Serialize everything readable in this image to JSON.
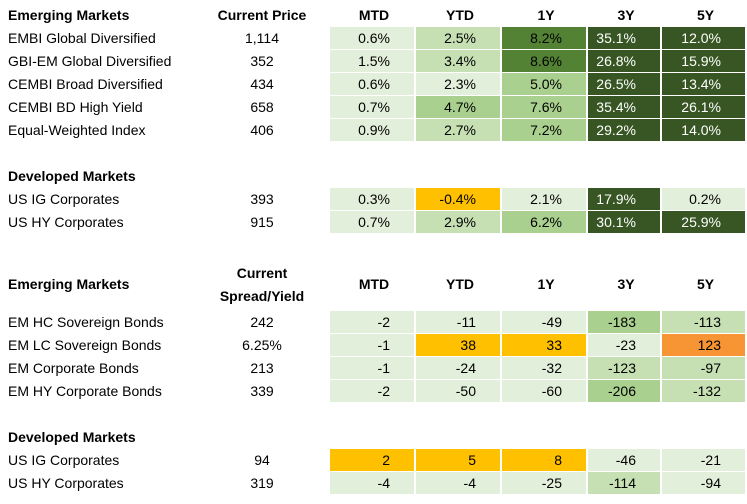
{
  "tables": [
    {
      "header": {
        "section": "Emerging Markets",
        "current": [
          "Current Price"
        ],
        "periods": [
          "MTD",
          "YTD",
          "1Y",
          "3Y",
          "5Y"
        ]
      },
      "groups": [
        {
          "rows": [
            {
              "name": "EMBI Global Diversified",
              "current": "1,114",
              "cells": [
                "0.6%",
                "2.5%",
                "8.2%",
                "35.1%",
                "12.0%"
              ],
              "fills": [
                "#e2efda",
                "#c6e0b4",
                "#548235",
                "#375623",
                "#375623"
              ]
            },
            {
              "name": "GBI-EM Global Diversified",
              "current": "352",
              "cells": [
                "1.5%",
                "3.4%",
                "8.6%",
                "26.8%",
                "15.9%"
              ],
              "fills": [
                "#e2efda",
                "#c6e0b4",
                "#548235",
                "#375623",
                "#375623"
              ]
            },
            {
              "name": "CEMBI Broad Diversified",
              "current": "434",
              "cells": [
                "0.6%",
                "2.3%",
                "5.0%",
                "26.5%",
                "13.4%"
              ],
              "fills": [
                "#e2efda",
                "#e2efda",
                "#a9d08e",
                "#375623",
                "#375623"
              ]
            },
            {
              "name": "CEMBI BD High Yield",
              "current": "658",
              "cells": [
                "0.7%",
                "4.7%",
                "7.6%",
                "35.4%",
                "26.1%"
              ],
              "fills": [
                "#e2efda",
                "#a9d08e",
                "#a9d08e",
                "#375623",
                "#375623"
              ]
            },
            {
              "name": "Equal-Weighted Index",
              "current": "406",
              "cells": [
                "0.9%",
                "2.7%",
                "7.2%",
                "29.2%",
                "14.0%"
              ],
              "fills": [
                "#e2efda",
                "#c6e0b4",
                "#a9d08e",
                "#375623",
                "#375623"
              ]
            }
          ]
        },
        {
          "title": "Developed Markets",
          "rows": [
            {
              "name": "US IG Corporates",
              "current": "393",
              "cells": [
                "0.3%",
                "-0.4%",
                "2.1%",
                "17.9%",
                "0.2%"
              ],
              "fills": [
                "#e2efda",
                "#ffc000",
                "#e2efda",
                "#375623",
                "#e2efda"
              ]
            },
            {
              "name": "US HY Corporates",
              "current": "915",
              "cells": [
                "0.7%",
                "2.9%",
                "6.2%",
                "30.1%",
                "25.9%"
              ],
              "fills": [
                "#e2efda",
                "#c6e0b4",
                "#a9d08e",
                "#375623",
                "#375623"
              ]
            }
          ]
        }
      ]
    },
    {
      "header": {
        "section": "Emerging Markets",
        "current": [
          "Current",
          "Spread/Yield"
        ],
        "periods": [
          "MTD",
          "YTD",
          "1Y",
          "3Y",
          "5Y"
        ]
      },
      "groups": [
        {
          "rows": [
            {
              "name": "EM HC Sovereign Bonds",
              "current": "242",
              "cells": [
                "-2",
                "-11",
                "-49",
                "-183",
                "-113"
              ],
              "fills": [
                "#e2efda",
                "#e2efda",
                "#e2efda",
                "#a9d08e",
                "#c6e0b4"
              ]
            },
            {
              "name": "EM LC Sovereign Bonds",
              "current": "6.25%",
              "cells": [
                "-1",
                "38",
                "33",
                "-23",
                "123"
              ],
              "fills": [
                "#e2efda",
                "#ffc000",
                "#ffc000",
                "#e2efda",
                "#f79433"
              ]
            },
            {
              "name": "EM Corporate Bonds",
              "current": "213",
              "cells": [
                "-1",
                "-24",
                "-32",
                "-123",
                "-97"
              ],
              "fills": [
                "#e2efda",
                "#e2efda",
                "#e2efda",
                "#c6e0b4",
                "#c6e0b4"
              ]
            },
            {
              "name": "EM HY Corporate Bonds",
              "current": "339",
              "cells": [
                "-2",
                "-50",
                "-60",
                "-206",
                "-132"
              ],
              "fills": [
                "#e2efda",
                "#e2efda",
                "#e2efda",
                "#a9d08e",
                "#c6e0b4"
              ]
            }
          ]
        },
        {
          "title": "Developed Markets",
          "rows": [
            {
              "name": "US IG Corporates",
              "current": "94",
              "cells": [
                "2",
                "5",
                "8",
                "-46",
                "-21"
              ],
              "fills": [
                "#ffc000",
                "#ffc000",
                "#ffc000",
                "#e2efda",
                "#e2efda"
              ]
            },
            {
              "name": "US HY Corporates",
              "current": "319",
              "cells": [
                "-4",
                "-4",
                "-25",
                "-114",
                "-94"
              ],
              "fills": [
                "#e2efda",
                "#e2efda",
                "#e2efda",
                "#c6e0b4",
                "#e2efda"
              ]
            }
          ]
        }
      ]
    }
  ]
}
